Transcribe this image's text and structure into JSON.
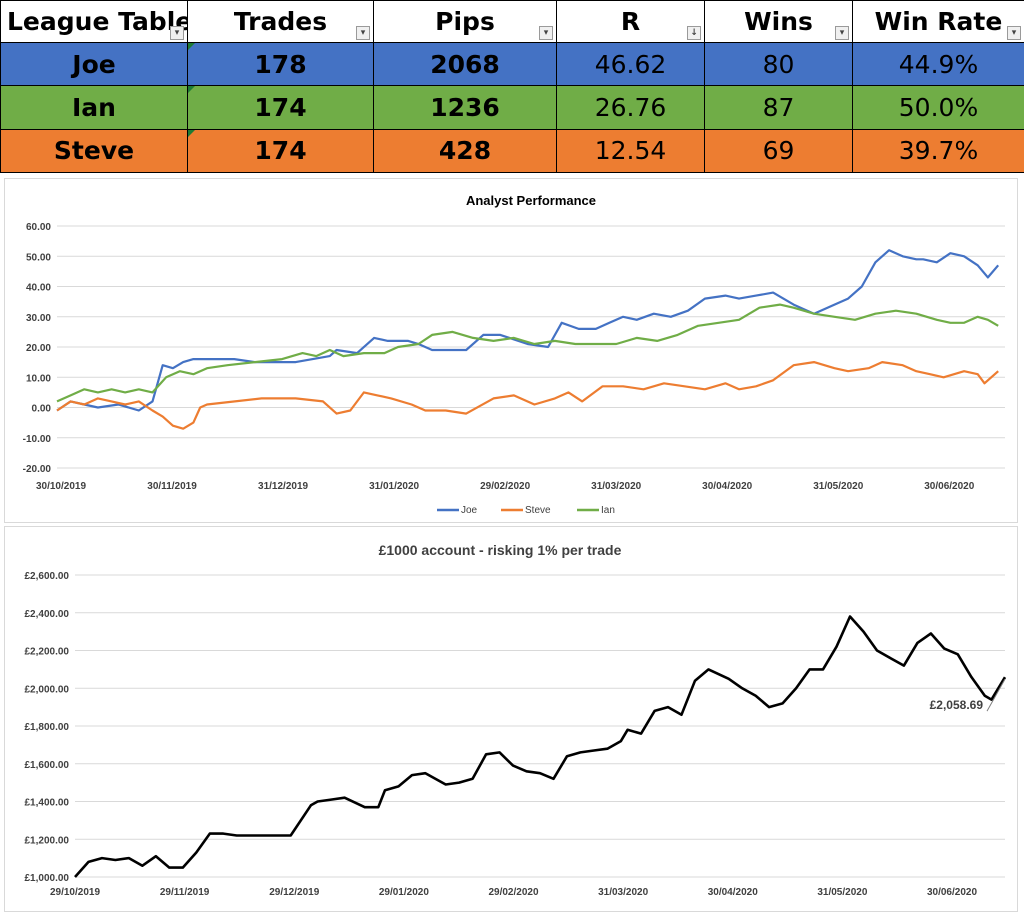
{
  "league": {
    "headers": [
      "League Table",
      "Trades",
      "Pips",
      "R",
      "Wins",
      "Win Rate"
    ],
    "rows": [
      {
        "name": "Joe",
        "trades": "178",
        "pips": "2068",
        "r": "46.62",
        "wins": "80",
        "win_rate": "44.9%",
        "color": "#4472c4"
      },
      {
        "name": "Ian",
        "trades": "174",
        "pips": "1236",
        "r": "26.76",
        "wins": "87",
        "win_rate": "50.0%",
        "color": "#70ad47"
      },
      {
        "name": "Steve",
        "trades": "174",
        "pips": "428",
        "r": "12.54",
        "wins": "69",
        "win_rate": "39.7%",
        "color": "#ed7d31"
      }
    ]
  },
  "chart_data": [
    {
      "type": "line",
      "title": "Analyst Performance",
      "xlabel": "",
      "ylabel": "",
      "ylim": [
        -20,
        60
      ],
      "yticks": [
        "60.00",
        "50.00",
        "40.00",
        "30.00",
        "20.00",
        "10.00",
        "0.00",
        "-10.00",
        "-20.00"
      ],
      "xticks": [
        "30/10/2019",
        "30/11/2019",
        "31/12/2019",
        "31/01/2020",
        "29/02/2020",
        "31/03/2020",
        "30/04/2020",
        "31/05/2020",
        "30/06/2020"
      ],
      "x_range_days": [
        0,
        278
      ],
      "legend": "bottom",
      "series": [
        {
          "name": "Joe",
          "color": "#4472c4",
          "x": [
            0,
            4,
            8,
            12,
            18,
            24,
            28,
            31,
            34,
            37,
            40,
            44,
            48,
            52,
            58,
            70,
            80,
            82,
            88,
            93,
            97,
            103,
            106,
            110,
            115,
            120,
            125,
            130,
            138,
            144,
            148,
            153,
            158,
            162,
            166,
            170,
            175,
            180,
            185,
            190,
            196,
            200,
            205,
            210,
            216,
            222,
            228,
            232,
            236,
            240,
            244,
            248,
            252,
            254,
            258,
            262,
            266,
            270,
            273,
            276
          ],
          "y": [
            -1,
            2,
            1,
            0,
            1,
            -1,
            2,
            14,
            13,
            15,
            16,
            16,
            16,
            16,
            15,
            15,
            17,
            19,
            18,
            23,
            22,
            22,
            21,
            19,
            19,
            19,
            24,
            24,
            21,
            20,
            28,
            26,
            26,
            28,
            30,
            29,
            31,
            30,
            32,
            36,
            37,
            36,
            37,
            38,
            34,
            31,
            34,
            36,
            40,
            48,
            52,
            50,
            49,
            49,
            48,
            51,
            50,
            47,
            43,
            47
          ]
        },
        {
          "name": "Steve",
          "color": "#ed7d31",
          "x": [
            0,
            4,
            8,
            12,
            16,
            20,
            24,
            28,
            31,
            34,
            37,
            40,
            42,
            44,
            60,
            70,
            78,
            82,
            86,
            90,
            94,
            98,
            104,
            108,
            114,
            120,
            128,
            134,
            140,
            146,
            150,
            154,
            160,
            166,
            172,
            178,
            184,
            190,
            196,
            200,
            205,
            210,
            216,
            222,
            228,
            232,
            238,
            242,
            248,
            252,
            256,
            260,
            266,
            270,
            272,
            276
          ],
          "y": [
            -1,
            2,
            1,
            3,
            2,
            1,
            2,
            -1,
            -3,
            -6,
            -7,
            -5,
            0,
            1,
            3,
            3,
            2,
            -2,
            -1,
            5,
            4,
            3,
            1,
            -1,
            -1,
            -2,
            3,
            4,
            1,
            3,
            5,
            2,
            7,
            7,
            6,
            8,
            7,
            6,
            8,
            6,
            7,
            9,
            14,
            15,
            13,
            12,
            13,
            15,
            14,
            12,
            11,
            10,
            12,
            11,
            8,
            12
          ]
        },
        {
          "name": "Ian",
          "color": "#70ad47",
          "x": [
            0,
            4,
            8,
            12,
            16,
            20,
            24,
            28,
            32,
            36,
            40,
            44,
            50,
            58,
            66,
            72,
            76,
            80,
            84,
            90,
            96,
            100,
            106,
            110,
            116,
            122,
            128,
            134,
            140,
            146,
            152,
            158,
            164,
            170,
            176,
            182,
            188,
            194,
            200,
            206,
            212,
            216,
            222,
            228,
            234,
            240,
            246,
            252,
            258,
            262,
            266,
            270,
            273,
            276
          ],
          "y": [
            2,
            4,
            6,
            5,
            6,
            5,
            6,
            5,
            10,
            12,
            11,
            13,
            14,
            15,
            16,
            18,
            17,
            19,
            17,
            18,
            18,
            20,
            21,
            24,
            25,
            23,
            22,
            23,
            21,
            22,
            21,
            21,
            21,
            23,
            22,
            24,
            27,
            28,
            29,
            33,
            34,
            33,
            31,
            30,
            29,
            31,
            32,
            31,
            29,
            28,
            28,
            30,
            29,
            27
          ]
        }
      ]
    },
    {
      "type": "line",
      "title": "£1000 account - risking 1% per trade",
      "xlabel": "",
      "ylabel": "",
      "ylim": [
        1000,
        2600
      ],
      "yticks": [
        "£2,600.00",
        "£2,400.00",
        "£2,200.00",
        "£2,000.00",
        "£1,800.00",
        "£1,600.00",
        "£1,400.00",
        "£1,200.00",
        "£1,000.00"
      ],
      "xticks": [
        "29/10/2019",
        "29/11/2019",
        "29/12/2019",
        "29/01/2020",
        "29/02/2020",
        "31/03/2020",
        "30/04/2020",
        "31/05/2020",
        "30/06/2020"
      ],
      "x_range_days": [
        0,
        276
      ],
      "legend": "none",
      "annotation": {
        "text": "£2,058.69",
        "x": 276,
        "y": 2058.69
      },
      "series": [
        {
          "name": "",
          "color": "#000000",
          "x": [
            0,
            4,
            8,
            12,
            16,
            20,
            24,
            28,
            32,
            36,
            40,
            44,
            48,
            52,
            58,
            64,
            70,
            72,
            76,
            80,
            86,
            90,
            92,
            96,
            100,
            104,
            110,
            114,
            118,
            122,
            126,
            130,
            134,
            138,
            142,
            146,
            150,
            154,
            158,
            162,
            164,
            168,
            172,
            176,
            180,
            184,
            188,
            194,
            198,
            202,
            206,
            210,
            214,
            218,
            222,
            226,
            230,
            234,
            238,
            242,
            246,
            250,
            254,
            258,
            262,
            266,
            270,
            272,
            276
          ],
          "y": [
            1000,
            1080,
            1100,
            1090,
            1100,
            1060,
            1110,
            1050,
            1050,
            1130,
            1230,
            1230,
            1220,
            1220,
            1220,
            1220,
            1380,
            1400,
            1410,
            1420,
            1370,
            1370,
            1460,
            1480,
            1540,
            1550,
            1490,
            1500,
            1520,
            1650,
            1660,
            1590,
            1560,
            1550,
            1520,
            1640,
            1660,
            1670,
            1680,
            1720,
            1780,
            1760,
            1880,
            1900,
            1860,
            2040,
            2100,
            2050,
            2000,
            1960,
            1900,
            1920,
            2000,
            2100,
            2100,
            2220,
            2380,
            2300,
            2200,
            2160,
            2120,
            2240,
            2290,
            2210,
            2180,
            2060,
            1960,
            1940,
            2058.69
          ]
        }
      ]
    }
  ]
}
